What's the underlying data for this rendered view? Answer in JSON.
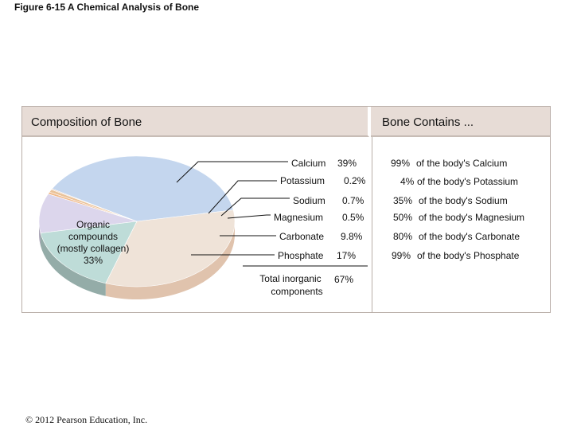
{
  "figure_title": "Figure 6-15 A Chemical Analysis of Bone",
  "copyright": "© 2012 Pearson Education, Inc.",
  "chart_data": {
    "type": "pie",
    "title": "Composition of Bone",
    "right_header": "Bone Contains ...",
    "organic": {
      "lines": [
        "Organic",
        "compounds",
        "(mostly collagen)",
        "33%"
      ],
      "value": 33
    },
    "inorganic": [
      {
        "name": "Calcium",
        "value": 39,
        "value_label": "39%",
        "body_pct": "99%",
        "body_text": "of the body's Calcium",
        "color": "#c4d6ee"
      },
      {
        "name": "Potassium",
        "value": 0.2,
        "value_label": "0.2%",
        "body_pct": "4%",
        "body_text": "of the body's Potassium",
        "color": "#e6c0a8"
      },
      {
        "name": "Sodium",
        "value": 0.7,
        "value_label": "0.7%",
        "body_pct": "35%",
        "body_text": "of the body's Sodium",
        "color": "#eac39a"
      },
      {
        "name": "Magnesium",
        "value": 0.5,
        "value_label": "0.5%",
        "body_pct": "50%",
        "body_text": "of the body's Magnesium",
        "color": "#f0b98a"
      },
      {
        "name": "Carbonate",
        "value": 9.8,
        "value_label": "9.8%",
        "body_pct": "80%",
        "body_text": "of the body's Carbonate",
        "color": "#dcd6ec"
      },
      {
        "name": "Phosphate",
        "value": 17,
        "value_label": "17%",
        "body_pct": "99%",
        "body_text": "of the body's Phosphate",
        "color": "#bedcd8"
      }
    ],
    "total_inorganic": {
      "lines": [
        "Total inorganic",
        "components"
      ],
      "value": 67,
      "value_label": "67%"
    },
    "colors": {
      "organic": "#efe3d8",
      "panel_band": "#e7dcd6",
      "panel_border": "#b9aea8"
    }
  }
}
